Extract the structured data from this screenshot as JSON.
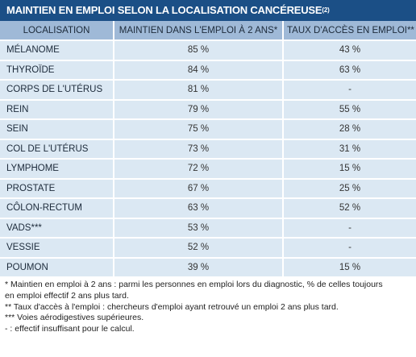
{
  "title": "MAINTIEN EN EMPLOI SELON LA LOCALISATION CANCÉREUSE",
  "title_ref": "(2)",
  "colors": {
    "title_bg": "#1b4f86",
    "header_bg": "#9fb9d7",
    "row_bg": "#dbe8f3"
  },
  "headers": {
    "localisation": "LOCALISATION",
    "maintien": "MAINTIEN DANS L'EMPLOI À 2 ANS*",
    "taux": "TAUX D'ACCÈS EN EMPLOI**"
  },
  "rows": [
    {
      "loc": "MÉLANOME",
      "maintien": "85 %",
      "taux": "43 %"
    },
    {
      "loc": "THYROÏDE",
      "maintien": "84 %",
      "taux": "63 %"
    },
    {
      "loc": "CORPS DE L'UTÉRUS",
      "maintien": "81 %",
      "taux": "-"
    },
    {
      "loc": "REIN",
      "maintien": "79 %",
      "taux": "55 %"
    },
    {
      "loc": "SEIN",
      "maintien": "75 %",
      "taux": "28 %"
    },
    {
      "loc": "COL DE L'UTÉRUS",
      "maintien": "73 %",
      "taux": "31 %"
    },
    {
      "loc": "LYMPHOME",
      "maintien": "72 %",
      "taux": "15 %"
    },
    {
      "loc": "PROSTATE",
      "maintien": "67 %",
      "taux": "25 %"
    },
    {
      "loc": "CÔLON-RECTUM",
      "maintien": "63 %",
      "taux": "52 %"
    },
    {
      "loc": "VADS***",
      "maintien": "53 %",
      "taux": "-"
    },
    {
      "loc": "VESSIE",
      "maintien": "52 %",
      "taux": "-"
    },
    {
      "loc": "POUMON",
      "maintien": "39 %",
      "taux": "15 %"
    }
  ],
  "notes": [
    "* Maintien en emploi à 2 ans : parmi les personnes en emploi lors du diagnostic, % de celles toujours",
    "en emploi effectif 2 ans plus tard.",
    "** Taux d'accès à l'emploi : chercheurs d'emploi ayant retrouvé un emploi 2 ans plus tard.",
    "*** Voies aérodigestives supérieures.",
    "- : effectif insuffisant pour le calcul."
  ]
}
